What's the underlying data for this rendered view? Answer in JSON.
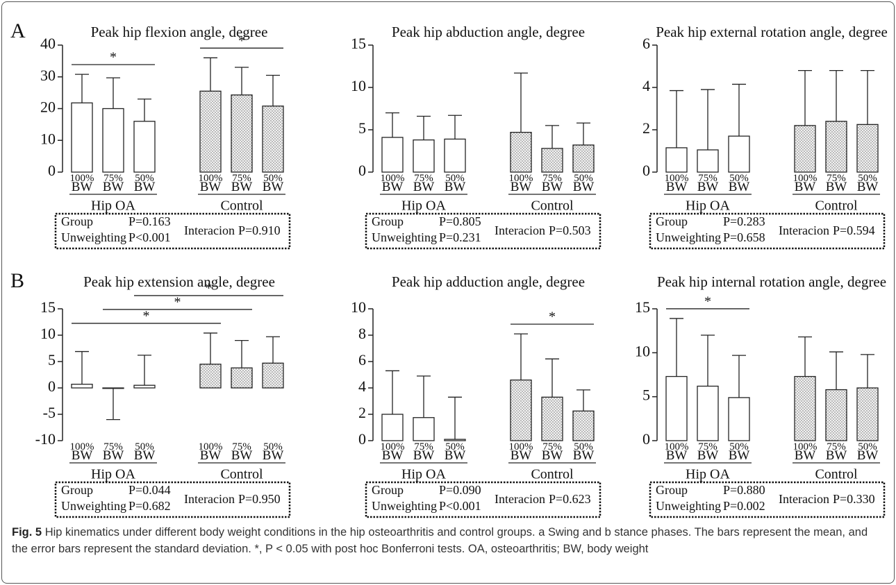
{
  "panels": [
    "A",
    "B"
  ],
  "caption": {
    "label": "Fig. 5",
    "text": "Hip kinematics under different body weight conditions in the hip osteoarthritis and control groups. a Swing and b stance phases. The bars represent the mean, and the error bars represent the standard deviation. *, P < 0.05 with post hoc Bonferroni tests. OA, osteoarthritis; BW, body weight"
  },
  "chart_data": [
    {
      "type": "bar",
      "title": "Peak hip flexion angle, degree",
      "categories": [
        "100% BW",
        "75% BW",
        "50% BW"
      ],
      "series": [
        {
          "name": "Hip OA",
          "pattern": "none",
          "values": [
            21.8,
            20.0,
            16.0
          ],
          "errors": [
            9.0,
            9.7,
            7.0
          ]
        },
        {
          "name": "Control",
          "pattern": "dots",
          "values": [
            25.5,
            24.3,
            20.8
          ],
          "errors": [
            10.5,
            8.7,
            9.7
          ]
        }
      ],
      "ylim": [
        0,
        40
      ],
      "yticks": [
        0,
        10,
        20,
        30,
        40
      ],
      "annotations": [
        {
          "label": "*",
          "from": [
            0,
            0
          ],
          "to": [
            0,
            2
          ]
        },
        {
          "label": "*",
          "from": [
            1,
            0
          ],
          "to": [
            1,
            2
          ]
        }
      ],
      "stats": [
        {
          "label": "Group",
          "value": "P=0.163"
        },
        {
          "label": "Unweighting",
          "value": "P<0.001"
        },
        {
          "label": "Interacion",
          "value": "P=0.910"
        }
      ]
    },
    {
      "type": "bar",
      "title": "Peak hip abduction angle, degree",
      "categories": [
        "100% BW",
        "75% BW",
        "50% BW"
      ],
      "series": [
        {
          "name": "Hip OA",
          "pattern": "none",
          "values": [
            4.1,
            3.8,
            3.9
          ],
          "errors": [
            2.9,
            2.8,
            2.8
          ]
        },
        {
          "name": "Control",
          "pattern": "dots",
          "values": [
            4.7,
            2.8,
            3.2
          ],
          "errors": [
            7.0,
            2.7,
            2.6
          ]
        }
      ],
      "ylim": [
        0,
        15
      ],
      "yticks": [
        0,
        5,
        10,
        15
      ],
      "annotations": [],
      "stats": [
        {
          "label": "Group",
          "value": "P=0.805"
        },
        {
          "label": "Unweighting",
          "value": "P=0.231"
        },
        {
          "label": "Interacion",
          "value": "P=0.503"
        }
      ]
    },
    {
      "type": "bar",
      "title": "Peak hip external rotation angle, degree",
      "categories": [
        "100% BW",
        "75% BW",
        "50% BW"
      ],
      "series": [
        {
          "name": "Hip OA",
          "pattern": "none",
          "values": [
            1.15,
            1.05,
            1.7
          ],
          "errors": [
            2.7,
            2.85,
            2.45
          ]
        },
        {
          "name": "Control",
          "pattern": "dots",
          "values": [
            2.2,
            2.4,
            2.25
          ],
          "errors": [
            2.6,
            2.4,
            2.55
          ]
        }
      ],
      "ylim": [
        0,
        6
      ],
      "yticks": [
        0,
        2,
        4,
        6
      ],
      "annotations": [],
      "stats": [
        {
          "label": "Group",
          "value": "P=0.283"
        },
        {
          "label": "Unweighting",
          "value": "P=0.658"
        },
        {
          "label": "Interacion",
          "value": "P=0.594"
        }
      ]
    },
    {
      "type": "bar",
      "title": "Peak hip extension angle, degree",
      "categories": [
        "100% BW",
        "75% BW",
        "50% BW"
      ],
      "series": [
        {
          "name": "Hip OA",
          "pattern": "none",
          "values": [
            0.7,
            -0.1,
            0.5
          ],
          "errors": [
            6.2,
            5.9,
            5.7
          ]
        },
        {
          "name": "Control",
          "pattern": "dots",
          "values": [
            4.5,
            3.8,
            4.7
          ],
          "errors": [
            5.9,
            5.2,
            5.0
          ]
        }
      ],
      "ylim": [
        -10,
        15
      ],
      "yticks": [
        -10,
        -5,
        0,
        5,
        10,
        15
      ],
      "annotations": [
        {
          "label": "*",
          "from": [
            0,
            0
          ],
          "to": [
            1,
            0
          ]
        },
        {
          "label": "*",
          "from": [
            0,
            1
          ],
          "to": [
            1,
            1
          ]
        },
        {
          "label": "*",
          "from": [
            0,
            2
          ],
          "to": [
            1,
            2
          ]
        }
      ],
      "stats": [
        {
          "label": "Group",
          "value": "P=0.044"
        },
        {
          "label": "Unweighting",
          "value": "P=0.682"
        },
        {
          "label": "Interacion",
          "value": "P=0.950"
        }
      ]
    },
    {
      "type": "bar",
      "title": "Peak hip adduction angle, degree",
      "categories": [
        "100% BW",
        "75% BW",
        "50% BW"
      ],
      "series": [
        {
          "name": "Hip OA",
          "pattern": "none",
          "values": [
            2.0,
            1.75,
            0.1
          ],
          "errors": [
            3.3,
            3.15,
            3.2
          ]
        },
        {
          "name": "Control",
          "pattern": "dots",
          "values": [
            4.6,
            3.3,
            2.25
          ],
          "errors": [
            3.5,
            2.9,
            1.6
          ]
        }
      ],
      "ylim": [
        0,
        10
      ],
      "yticks": [
        0,
        2,
        4,
        6,
        8,
        10
      ],
      "annotations": [
        {
          "label": "*",
          "from": [
            1,
            0
          ],
          "to": [
            1,
            2
          ]
        }
      ],
      "stats": [
        {
          "label": "Group",
          "value": "P=0.090"
        },
        {
          "label": "Unweighting",
          "value": "P<0.001"
        },
        {
          "label": "Interacion",
          "value": "P=0.623"
        }
      ]
    },
    {
      "type": "bar",
      "title": "Peak hip internal rotation angle, degree",
      "categories": [
        "100% BW",
        "75% BW",
        "50% BW"
      ],
      "series": [
        {
          "name": "Hip OA",
          "pattern": "none",
          "values": [
            7.3,
            6.2,
            4.9
          ],
          "errors": [
            6.6,
            5.8,
            4.8
          ]
        },
        {
          "name": "Control",
          "pattern": "dots",
          "values": [
            7.3,
            5.8,
            6.0
          ],
          "errors": [
            4.5,
            4.3,
            3.8
          ]
        }
      ],
      "ylim": [
        0,
        15
      ],
      "yticks": [
        0,
        5,
        10,
        15
      ],
      "annotations": [
        {
          "label": "*",
          "from": [
            0,
            0
          ],
          "to": [
            0,
            2
          ]
        }
      ],
      "stats": [
        {
          "label": "Group",
          "value": "P=0.880"
        },
        {
          "label": "Unweighting",
          "value": "P=0.002"
        },
        {
          "label": "Interacion",
          "value": "P=0.330"
        }
      ]
    }
  ]
}
